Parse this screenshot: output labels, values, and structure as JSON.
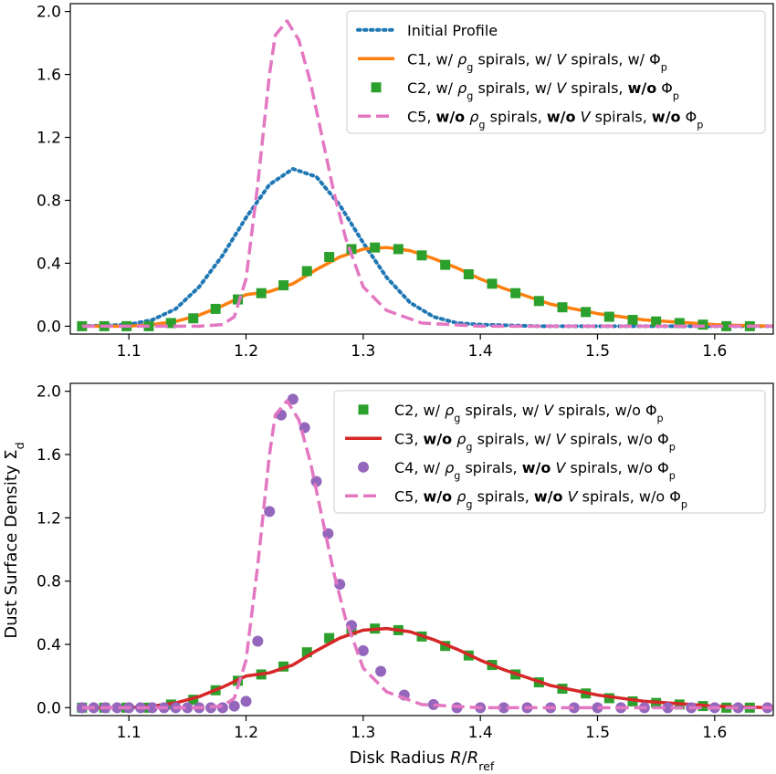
{
  "chart_data": [
    {
      "type": "line",
      "title": "",
      "xlabel": "",
      "ylabel": "",
      "xlim": [
        1.05,
        1.65
      ],
      "ylim": [
        -0.05,
        2.05
      ],
      "xticks": [
        1.1,
        1.2,
        1.3,
        1.4,
        1.5,
        1.6
      ],
      "xtick_labels": [
        "1.1",
        "1.2",
        "1.3",
        "1.4",
        "1.5",
        "1.6"
      ],
      "yticks": [
        0.0,
        0.4,
        0.8,
        1.2,
        1.6,
        2.0
      ],
      "ytick_labels": [
        "0.0",
        "0.4",
        "0.8",
        "1.2",
        "1.6",
        "2.0"
      ],
      "legend_position": "top-right",
      "series": [
        {
          "name": "Initial Profile",
          "legend_parts": [
            {
              "t": "Initial Profile"
            }
          ],
          "color": "#1f77b4",
          "style": "dotted",
          "x": [
            1.06,
            1.1,
            1.12,
            1.14,
            1.16,
            1.18,
            1.2,
            1.22,
            1.24,
            1.26,
            1.28,
            1.3,
            1.32,
            1.34,
            1.36,
            1.38,
            1.4,
            1.45,
            1.5,
            1.55,
            1.6,
            1.65
          ],
          "y": [
            0.0,
            0.01,
            0.04,
            0.11,
            0.25,
            0.45,
            0.69,
            0.9,
            1.0,
            0.95,
            0.77,
            0.53,
            0.31,
            0.15,
            0.06,
            0.02,
            0.01,
            0.0,
            0.0,
            0.0,
            0.0,
            0.0
          ]
        },
        {
          "name": "C1",
          "legend_parts": [
            {
              "t": "C1, w/ "
            },
            {
              "t": "ρ",
              "i": true
            },
            {
              "t": "g",
              "sub": true
            },
            {
              "t": " spirals, w/ "
            },
            {
              "t": "V",
              "i": true
            },
            {
              "t": " spirals, w/ "
            },
            {
              "t": "Φ"
            },
            {
              "t": "p",
              "sub": true
            }
          ],
          "color": "#ff7f0e",
          "style": "solid",
          "x": [
            1.06,
            1.08,
            1.1,
            1.12,
            1.14,
            1.16,
            1.18,
            1.2,
            1.22,
            1.24,
            1.26,
            1.28,
            1.3,
            1.32,
            1.34,
            1.36,
            1.38,
            1.4,
            1.42,
            1.44,
            1.46,
            1.48,
            1.5,
            1.52,
            1.54,
            1.56,
            1.58,
            1.6,
            1.62,
            1.65
          ],
          "y": [
            0.0,
            0.0,
            0.0,
            0.01,
            0.03,
            0.07,
            0.13,
            0.2,
            0.22,
            0.27,
            0.36,
            0.44,
            0.49,
            0.5,
            0.48,
            0.43,
            0.37,
            0.3,
            0.24,
            0.19,
            0.14,
            0.11,
            0.08,
            0.06,
            0.04,
            0.03,
            0.02,
            0.01,
            0.005,
            0.0
          ]
        },
        {
          "name": "C2",
          "legend_parts": [
            {
              "t": "C2, w/ "
            },
            {
              "t": "ρ",
              "i": true
            },
            {
              "t": "g",
              "sub": true
            },
            {
              "t": " spirals, w/ "
            },
            {
              "t": "V",
              "i": true
            },
            {
              "t": " spirals, "
            },
            {
              "t": "w/o",
              "b": true
            },
            {
              "t": " Φ"
            },
            {
              "t": "p",
              "sub": true
            }
          ],
          "color": "#2ca02c",
          "style": "square",
          "x": [
            1.06,
            1.079,
            1.098,
            1.117,
            1.136,
            1.155,
            1.174,
            1.193,
            1.213,
            1.232,
            1.252,
            1.271,
            1.29,
            1.31,
            1.33,
            1.35,
            1.37,
            1.39,
            1.41,
            1.43,
            1.45,
            1.47,
            1.49,
            1.51,
            1.53,
            1.55,
            1.57,
            1.59,
            1.61,
            1.63
          ],
          "y": [
            0.0,
            0.0,
            0.0,
            0.0,
            0.02,
            0.05,
            0.11,
            0.17,
            0.21,
            0.26,
            0.35,
            0.44,
            0.49,
            0.5,
            0.49,
            0.45,
            0.39,
            0.33,
            0.27,
            0.21,
            0.16,
            0.12,
            0.09,
            0.06,
            0.04,
            0.03,
            0.02,
            0.01,
            0.0,
            0.0
          ]
        },
        {
          "name": "C5",
          "legend_parts": [
            {
              "t": "C5, "
            },
            {
              "t": "w/o",
              "b": true
            },
            {
              "t": " "
            },
            {
              "t": "ρ",
              "i": true
            },
            {
              "t": "g",
              "sub": true
            },
            {
              "t": " spirals, "
            },
            {
              "t": "w/o",
              "b": true
            },
            {
              "t": " "
            },
            {
              "t": "V",
              "i": true
            },
            {
              "t": " spirals, "
            },
            {
              "t": "w/o",
              "b": true
            },
            {
              "t": " Φ"
            },
            {
              "t": "p",
              "sub": true
            }
          ],
          "color": "#e377c2",
          "style": "dashed",
          "x": [
            1.06,
            1.16,
            1.18,
            1.19,
            1.2,
            1.21,
            1.22,
            1.225,
            1.235,
            1.245,
            1.255,
            1.265,
            1.275,
            1.285,
            1.3,
            1.32,
            1.35,
            1.4,
            1.5,
            1.65
          ],
          "y": [
            0.0,
            0.0,
            0.01,
            0.06,
            0.3,
            0.9,
            1.6,
            1.85,
            1.94,
            1.82,
            1.55,
            1.2,
            0.85,
            0.56,
            0.25,
            0.1,
            0.02,
            0.0,
            0.0,
            0.0
          ]
        }
      ]
    },
    {
      "type": "line",
      "title": "",
      "xlabel": "Disk Radius R/R_ref",
      "xlabel_parts": [
        {
          "t": "Disk Radius "
        },
        {
          "t": "R",
          "i": true
        },
        {
          "t": "/"
        },
        {
          "t": "R",
          "i": true
        },
        {
          "t": "ref",
          "sub": true
        }
      ],
      "ylabel": "Dust Surface Density Σ_d",
      "ylabel_parts": [
        {
          "t": "Dust Surface Density Σ"
        },
        {
          "t": "d",
          "sub": true
        }
      ],
      "xlim": [
        1.05,
        1.65
      ],
      "ylim": [
        -0.05,
        2.05
      ],
      "xticks": [
        1.1,
        1.2,
        1.3,
        1.4,
        1.5,
        1.6
      ],
      "xtick_labels": [
        "1.1",
        "1.2",
        "1.3",
        "1.4",
        "1.5",
        "1.6"
      ],
      "yticks": [
        0.0,
        0.4,
        0.8,
        1.2,
        1.6,
        2.0
      ],
      "ytick_labels": [
        "0.0",
        "0.4",
        "0.8",
        "1.2",
        "1.6",
        "2.0"
      ],
      "legend_position": "top-right",
      "series": [
        {
          "name": "C2",
          "legend_parts": [
            {
              "t": "C2, w/ "
            },
            {
              "t": "ρ",
              "i": true
            },
            {
              "t": "g",
              "sub": true
            },
            {
              "t": " spirals, w/ "
            },
            {
              "t": "V",
              "i": true
            },
            {
              "t": " spirals, w/o Φ"
            },
            {
              "t": "p",
              "sub": true
            }
          ],
          "color": "#2ca02c",
          "style": "square",
          "x": [
            1.06,
            1.079,
            1.098,
            1.117,
            1.136,
            1.155,
            1.174,
            1.193,
            1.213,
            1.232,
            1.252,
            1.271,
            1.29,
            1.31,
            1.33,
            1.35,
            1.37,
            1.39,
            1.41,
            1.43,
            1.45,
            1.47,
            1.49,
            1.51,
            1.53,
            1.55,
            1.57,
            1.59,
            1.61,
            1.63
          ],
          "y": [
            0.0,
            0.0,
            0.0,
            0.0,
            0.02,
            0.05,
            0.11,
            0.17,
            0.21,
            0.26,
            0.35,
            0.44,
            0.49,
            0.5,
            0.49,
            0.45,
            0.39,
            0.33,
            0.27,
            0.21,
            0.16,
            0.12,
            0.09,
            0.06,
            0.04,
            0.03,
            0.02,
            0.01,
            0.0,
            0.0
          ]
        },
        {
          "name": "C3",
          "legend_parts": [
            {
              "t": "C3, "
            },
            {
              "t": "w/o",
              "b": true
            },
            {
              "t": " "
            },
            {
              "t": "ρ",
              "i": true
            },
            {
              "t": "g",
              "sub": true
            },
            {
              "t": " spirals, w/ "
            },
            {
              "t": "V",
              "i": true
            },
            {
              "t": " spirals, w/o Φ"
            },
            {
              "t": "p",
              "sub": true
            }
          ],
          "color": "#d62728",
          "style": "solid",
          "x": [
            1.06,
            1.08,
            1.1,
            1.12,
            1.14,
            1.16,
            1.18,
            1.2,
            1.22,
            1.24,
            1.26,
            1.28,
            1.3,
            1.32,
            1.34,
            1.36,
            1.38,
            1.4,
            1.42,
            1.44,
            1.46,
            1.48,
            1.5,
            1.52,
            1.54,
            1.56,
            1.58,
            1.6,
            1.62,
            1.65
          ],
          "y": [
            0.0,
            0.0,
            0.0,
            0.01,
            0.03,
            0.07,
            0.13,
            0.2,
            0.22,
            0.27,
            0.36,
            0.44,
            0.49,
            0.5,
            0.48,
            0.43,
            0.37,
            0.3,
            0.24,
            0.19,
            0.14,
            0.11,
            0.08,
            0.06,
            0.04,
            0.03,
            0.02,
            0.01,
            0.005,
            0.0
          ]
        },
        {
          "name": "C4",
          "legend_parts": [
            {
              "t": "C4, w/ "
            },
            {
              "t": "ρ",
              "i": true
            },
            {
              "t": "g",
              "sub": true
            },
            {
              "t": " spirals, "
            },
            {
              "t": "w/o",
              "b": true
            },
            {
              "t": " "
            },
            {
              "t": "V",
              "i": true
            },
            {
              "t": " spirals, w/o Φ"
            },
            {
              "t": "p",
              "sub": true
            }
          ],
          "color": "#9467bd",
          "style": "circle",
          "x": [
            1.06,
            1.07,
            1.08,
            1.09,
            1.1,
            1.11,
            1.12,
            1.13,
            1.14,
            1.15,
            1.16,
            1.17,
            1.18,
            1.19,
            1.2,
            1.21,
            1.22,
            1.23,
            1.24,
            1.25,
            1.26,
            1.27,
            1.28,
            1.29,
            1.3,
            1.315,
            1.335,
            1.36,
            1.38,
            1.4,
            1.42,
            1.44,
            1.46,
            1.48,
            1.5,
            1.52,
            1.54,
            1.56,
            1.58,
            1.6,
            1.62,
            1.645
          ],
          "y": [
            0.0,
            0.0,
            0.0,
            0.0,
            0.0,
            0.0,
            0.0,
            0.0,
            0.0,
            0.0,
            0.0,
            0.0,
            0.0,
            0.01,
            0.04,
            0.42,
            1.24,
            1.85,
            1.95,
            1.77,
            1.43,
            1.1,
            0.78,
            0.52,
            0.36,
            0.23,
            0.08,
            0.02,
            0.0,
            0.0,
            0.0,
            0.0,
            0.0,
            0.0,
            0.0,
            0.0,
            0.0,
            0.0,
            0.0,
            0.0,
            0.0,
            0.0
          ]
        },
        {
          "name": "C5",
          "legend_parts": [
            {
              "t": "C5, "
            },
            {
              "t": "w/o",
              "b": true
            },
            {
              "t": " "
            },
            {
              "t": "ρ",
              "i": true
            },
            {
              "t": "g",
              "sub": true
            },
            {
              "t": " spirals, "
            },
            {
              "t": "w/o",
              "b": true
            },
            {
              "t": " "
            },
            {
              "t": "V",
              "i": true
            },
            {
              "t": " spirals, w/o Φ"
            },
            {
              "t": "p",
              "sub": true
            }
          ],
          "color": "#e377c2",
          "style": "dashed",
          "x": [
            1.06,
            1.16,
            1.18,
            1.19,
            1.2,
            1.21,
            1.22,
            1.225,
            1.235,
            1.245,
            1.255,
            1.265,
            1.275,
            1.285,
            1.3,
            1.32,
            1.35,
            1.4,
            1.5,
            1.65
          ],
          "y": [
            0.0,
            0.0,
            0.01,
            0.06,
            0.3,
            0.9,
            1.6,
            1.85,
            1.94,
            1.82,
            1.55,
            1.2,
            0.85,
            0.56,
            0.25,
            0.1,
            0.02,
            0.0,
            0.0,
            0.0
          ]
        }
      ]
    }
  ]
}
